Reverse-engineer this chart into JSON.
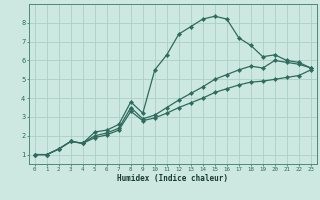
{
  "xlabel": "Humidex (Indice chaleur)",
  "background_color": "#cce8e0",
  "grid_color": "#aacfc8",
  "line_color": "#2e6b5e",
  "xlim": [
    -0.5,
    23.5
  ],
  "ylim": [
    0.5,
    9.0
  ],
  "xticks": [
    0,
    1,
    2,
    3,
    4,
    5,
    6,
    7,
    8,
    9,
    10,
    11,
    12,
    13,
    14,
    15,
    16,
    17,
    18,
    19,
    20,
    21,
    22,
    23
  ],
  "yticks": [
    1,
    2,
    3,
    4,
    5,
    6,
    7,
    8
  ],
  "line1_x": [
    0,
    1,
    2,
    3,
    4,
    5,
    6,
    7,
    8,
    9,
    10,
    11,
    12,
    13,
    14,
    15,
    16,
    17,
    18,
    19,
    20,
    21,
    22,
    23
  ],
  "line1_y": [
    1.0,
    1.0,
    1.3,
    1.7,
    1.6,
    2.2,
    2.3,
    2.6,
    3.8,
    3.2,
    5.5,
    6.3,
    7.4,
    7.8,
    8.2,
    8.35,
    8.2,
    7.2,
    6.8,
    6.2,
    6.3,
    6.0,
    5.9,
    5.6
  ],
  "line2_x": [
    0,
    1,
    2,
    3,
    4,
    5,
    6,
    7,
    8,
    9,
    10,
    11,
    12,
    13,
    14,
    15,
    16,
    17,
    18,
    19,
    20,
    21,
    22,
    23
  ],
  "line2_y": [
    1.0,
    1.0,
    1.3,
    1.7,
    1.6,
    2.0,
    2.15,
    2.4,
    3.5,
    2.9,
    3.1,
    3.5,
    3.9,
    4.25,
    4.6,
    5.0,
    5.25,
    5.5,
    5.7,
    5.6,
    6.0,
    5.9,
    5.8,
    5.6
  ],
  "line3_x": [
    0,
    1,
    2,
    3,
    4,
    5,
    6,
    7,
    8,
    9,
    10,
    11,
    12,
    13,
    14,
    15,
    16,
    17,
    18,
    19,
    20,
    21,
    22,
    23
  ],
  "line3_y": [
    1.0,
    1.0,
    1.3,
    1.7,
    1.6,
    1.9,
    2.05,
    2.3,
    3.3,
    2.8,
    2.95,
    3.2,
    3.5,
    3.75,
    4.0,
    4.3,
    4.5,
    4.7,
    4.85,
    4.9,
    5.0,
    5.1,
    5.2,
    5.5
  ],
  "marker_x": [
    0,
    1,
    2,
    3,
    4,
    5,
    6,
    7,
    9,
    10,
    11,
    12,
    13,
    14,
    15,
    16,
    17,
    18,
    19,
    20,
    21,
    22,
    23
  ]
}
